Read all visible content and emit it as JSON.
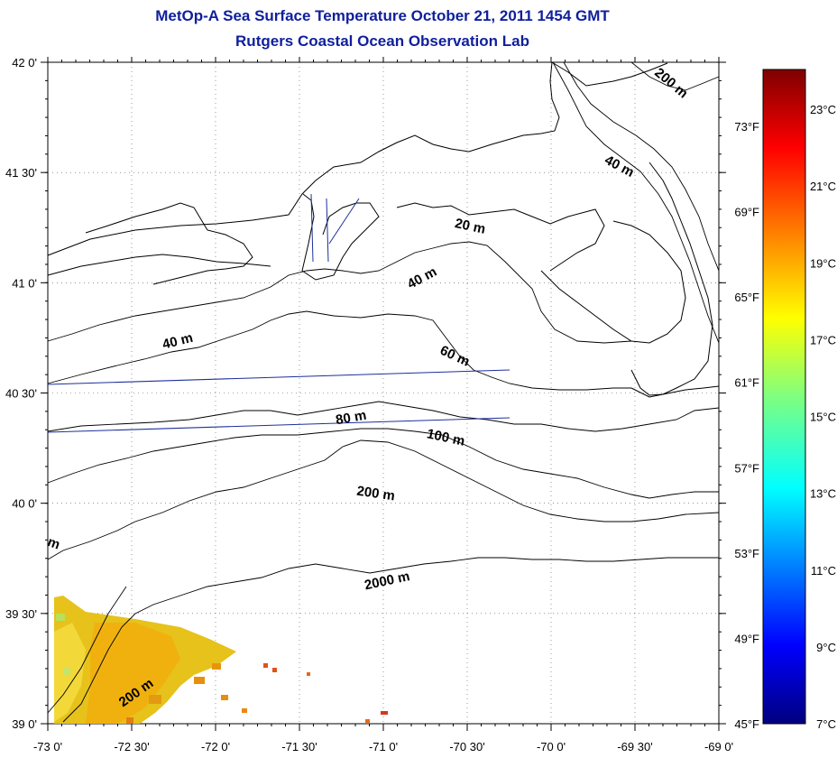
{
  "title_line1": "MetOp-A Sea Surface Temperature October 21, 2011 1454 GMT",
  "title_line2": "Rutgers Coastal Ocean Observation Lab",
  "lon_ticks": [
    "-73 0'",
    "-72 30'",
    "-72 0'",
    "-71 30'",
    "-71 0'",
    "-70 30'",
    "-70 0'",
    "-69 30'",
    "-69 0'"
  ],
  "lat_ticks": [
    "42 0'",
    "41 30'",
    "41 0'",
    "40 30'",
    "40 0'",
    "39 30'",
    "39 0'"
  ],
  "contour_labels": [
    "200 m",
    "40 m",
    "20 m",
    "40 m",
    "40 m",
    "60 m",
    "80 m",
    "100 m",
    "200 m",
    "2000 m",
    "200 m",
    "m"
  ],
  "colorbar_f": [
    "73°F",
    "69°F",
    "65°F",
    "61°F",
    "57°F",
    "53°F",
    "49°F",
    "45°F"
  ],
  "colorbar_c": [
    "23°C",
    "21°C",
    "19°C",
    "17°C",
    "15°C",
    "13°C",
    "11°C",
    "9°C",
    "7°C"
  ],
  "colors": {
    "title": "#0f1f9c",
    "transect": "#1d2f9c",
    "contour": "#000000"
  }
}
